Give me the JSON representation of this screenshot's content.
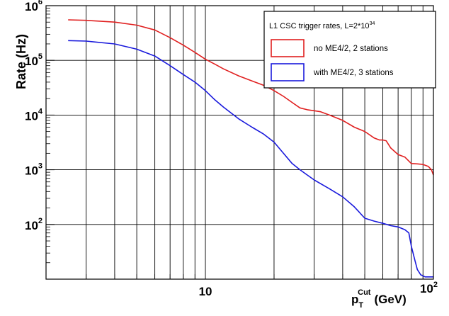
{
  "chart_data": {
    "type": "line",
    "title": "",
    "ylabel": "Rate (Hz)",
    "xlabel": {
      "prefix": "p",
      "subscript": "T",
      "superscript": "Cut",
      "suffix": "(GeV)"
    },
    "xscale": "log",
    "yscale": "log",
    "xlim": [
      2,
      100
    ],
    "ylim": [
      10,
      1000000
    ],
    "grid": true,
    "x_ticks": [
      {
        "value": 10,
        "label": "10"
      },
      {
        "value": 100,
        "label": "10",
        "exponent": "2"
      }
    ],
    "y_ticks": [
      {
        "value": 100,
        "label": "10",
        "exponent": "2"
      },
      {
        "value": 1000,
        "label": "10",
        "exponent": "3"
      },
      {
        "value": 10000,
        "label": "10",
        "exponent": "4"
      },
      {
        "value": 100000,
        "label": "10",
        "exponent": "5"
      },
      {
        "value": 1000000,
        "label": "10",
        "exponent": "6"
      }
    ],
    "legend": {
      "position": "top-right",
      "title": {
        "text": "L1 CSC trigger rates, L=2*10",
        "exponent": "34"
      }
    },
    "series": [
      {
        "name": "no ME4/2, 2 stations",
        "color": "#e02020",
        "points": [
          [
            2.5,
            550000
          ],
          [
            3,
            540000
          ],
          [
            4,
            500000
          ],
          [
            5,
            440000
          ],
          [
            6,
            360000
          ],
          [
            7,
            260000
          ],
          [
            8,
            190000
          ],
          [
            9,
            140000
          ],
          [
            10,
            105000
          ],
          [
            11,
            85000
          ],
          [
            12,
            70000
          ],
          [
            14,
            52000
          ],
          [
            16,
            42000
          ],
          [
            18,
            35000
          ],
          [
            20,
            28000
          ],
          [
            22,
            22000
          ],
          [
            24,
            17000
          ],
          [
            26,
            13500
          ],
          [
            28,
            12500
          ],
          [
            30,
            12000
          ],
          [
            32,
            11500
          ],
          [
            35,
            10000
          ],
          [
            40,
            8000
          ],
          [
            45,
            6000
          ],
          [
            50,
            5000
          ],
          [
            55,
            3800
          ],
          [
            58,
            3500
          ],
          [
            60,
            3500
          ],
          [
            62,
            3400
          ],
          [
            65,
            2500
          ],
          [
            70,
            1900
          ],
          [
            75,
            1700
          ],
          [
            80,
            1300
          ],
          [
            85,
            1280
          ],
          [
            90,
            1250
          ],
          [
            95,
            1150
          ],
          [
            98,
            1000
          ],
          [
            100,
            800
          ]
        ]
      },
      {
        "name": "with ME4/2, 3 stations",
        "color": "#1a1adc",
        "points": [
          [
            2.5,
            230000
          ],
          [
            3,
            225000
          ],
          [
            4,
            200000
          ],
          [
            5,
            160000
          ],
          [
            6,
            120000
          ],
          [
            7,
            80000
          ],
          [
            8,
            55000
          ],
          [
            9,
            40000
          ],
          [
            10,
            28000
          ],
          [
            11,
            19000
          ],
          [
            12,
            14000
          ],
          [
            14,
            8500
          ],
          [
            16,
            6000
          ],
          [
            18,
            4500
          ],
          [
            20,
            3200
          ],
          [
            22,
            2000
          ],
          [
            24,
            1300
          ],
          [
            26,
            1000
          ],
          [
            28,
            800
          ],
          [
            30,
            650
          ],
          [
            35,
            450
          ],
          [
            40,
            320
          ],
          [
            45,
            210
          ],
          [
            50,
            130
          ],
          [
            55,
            115
          ],
          [
            60,
            105
          ],
          [
            65,
            95
          ],
          [
            70,
            90
          ],
          [
            75,
            80
          ],
          [
            78,
            70
          ],
          [
            80,
            40
          ],
          [
            83,
            22
          ],
          [
            85,
            15
          ],
          [
            88,
            12
          ],
          [
            92,
            11
          ],
          [
            100,
            11
          ]
        ]
      }
    ]
  }
}
